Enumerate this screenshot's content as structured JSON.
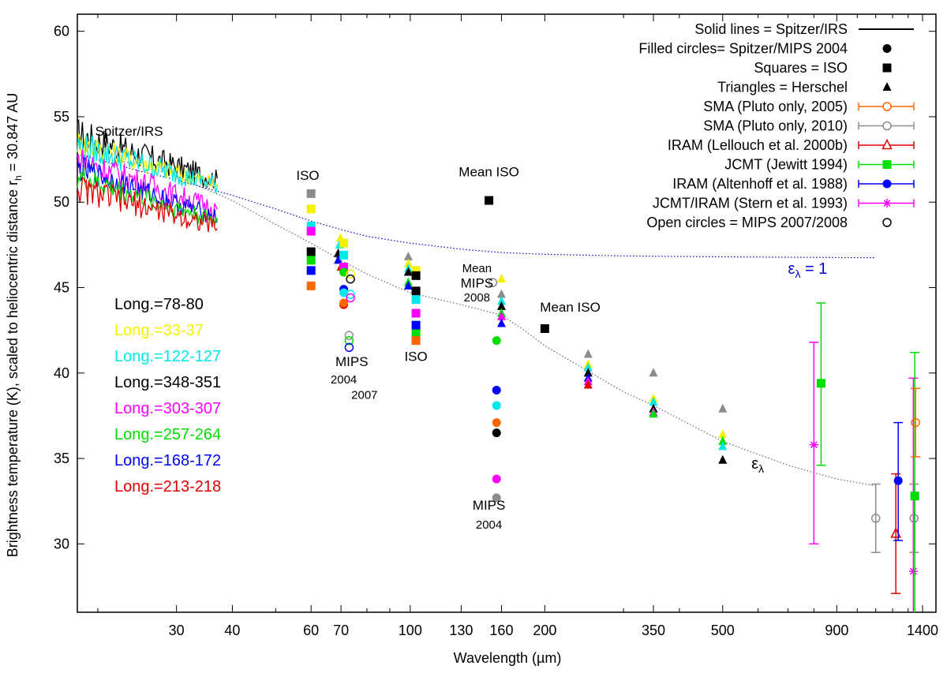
{
  "chart_data": {
    "type": "scatter",
    "xlabel": "Wavelength (µm)",
    "ylabel_main": "Brightness temperature (K), scaled to heliocentric distance r",
    "ylabel_sub": "h",
    "ylabel_tail": " = 30.847 AU",
    "x_scale": "log",
    "xlim": [
      18,
      1500
    ],
    "ylim": [
      26,
      61
    ],
    "xticks": [
      30,
      40,
      60,
      70,
      100,
      130,
      160,
      200,
      350,
      500,
      900,
      1400
    ],
    "yticks": [
      30,
      35,
      40,
      45,
      50,
      55,
      60
    ],
    "legend": [
      {
        "label": "Solid lines = Spitzer/IRS",
        "symbol": "line",
        "color": "#000000"
      },
      {
        "label": "Filled circles= Spitzer/MIPS 2004",
        "symbol": "filled-circle",
        "color": "#000000"
      },
      {
        "label": "Squares = ISO",
        "symbol": "square",
        "color": "#000000"
      },
      {
        "label": "Triangles = Herschel",
        "symbol": "triangle",
        "color": "#000000"
      },
      {
        "label": "SMA (Pluto only, 2005)",
        "symbol": "open-circle-err",
        "color": "#ff6600"
      },
      {
        "label": "SMA (Pluto only, 2010)",
        "symbol": "open-circle-err",
        "color": "#8c8c8c"
      },
      {
        "label": "IRAM (Lellouch et al. 2000b)",
        "symbol": "open-triangle-err",
        "color": "#e00000"
      },
      {
        "label": "JCMT (Jewitt 1994)",
        "symbol": "square-err",
        "color": "#00e000"
      },
      {
        "label": "IRAM (Altenhoff et al. 1988)",
        "symbol": "circle-err",
        "color": "#0000ff"
      },
      {
        "label": "JCMT/IRAM (Stern et al. 1993)",
        "symbol": "star-err",
        "color": "#ff00ff"
      },
      {
        "label": "Open circles = MIPS 2007/2008",
        "symbol": "open-circle",
        "color": "#000000"
      }
    ],
    "longitude_groups": [
      {
        "label": "Long.=78-80",
        "color": "#000000"
      },
      {
        "label": "Long.=33-37",
        "color": "#f2f200"
      },
      {
        "label": "Long.=122-127",
        "color": "#00e8e8"
      },
      {
        "label": "Long.=348-351",
        "color": "#000000"
      },
      {
        "label": "Long.=303-307",
        "color": "#ff00ff"
      },
      {
        "label": "Long.=257-264",
        "color": "#00dd00"
      },
      {
        "label": "Long.=168-172",
        "color": "#0000ff"
      },
      {
        "label": "Long.=213-218",
        "color": "#e00000"
      }
    ],
    "annotations": [
      {
        "text": "Spitzer/IRS",
        "x": 23.5,
        "y": 53.9
      },
      {
        "text": "ISO",
        "x": 59,
        "y": 51.3
      },
      {
        "text": "MIPS",
        "x": 74,
        "y": 40.4
      },
      {
        "text": "2004",
        "x": 71,
        "y": 39.4
      },
      {
        "text": "2007",
        "x": 79,
        "y": 38.5
      },
      {
        "text": "ISO",
        "x": 103,
        "y": 40.7
      },
      {
        "text": "Mean ISO",
        "x": 150,
        "y": 51.5
      },
      {
        "text": "Mean",
        "x": 141,
        "y": 45.9
      },
      {
        "text": "MIPS",
        "x": 141,
        "y": 45.0
      },
      {
        "text": "2008",
        "x": 141,
        "y": 44.2
      },
      {
        "text": "Mean ISO",
        "x": 228,
        "y": 43.6
      },
      {
        "text": "MIPS",
        "x": 150,
        "y": 32.0
      },
      {
        "text": "2004",
        "x": 150,
        "y": 30.9
      }
    ],
    "curves": [
      {
        "name": "ελ = 1",
        "style": "dotted",
        "color": "#0000cc",
        "points": [
          [
            18,
            52.8
          ],
          [
            25,
            51.8
          ],
          [
            30,
            51.3
          ],
          [
            40,
            50.4
          ],
          [
            50,
            49.6
          ],
          [
            60,
            48.9
          ],
          [
            70,
            48.4
          ],
          [
            80,
            48.0
          ],
          [
            100,
            47.6
          ],
          [
            130,
            47.25
          ],
          [
            160,
            47.05
          ],
          [
            200,
            46.95
          ],
          [
            300,
            46.85
          ],
          [
            500,
            46.8
          ],
          [
            1000,
            46.75
          ],
          [
            1100,
            46.75
          ]
        ]
      },
      {
        "name": "ελ",
        "style": "dotted",
        "color": "#666666",
        "points": [
          [
            18,
            52.8
          ],
          [
            25,
            52.2
          ],
          [
            30,
            51.5
          ],
          [
            40,
            50.1
          ],
          [
            50,
            48.7
          ],
          [
            60,
            47.6
          ],
          [
            70,
            46.6
          ],
          [
            80,
            45.8
          ],
          [
            100,
            44.7
          ],
          [
            130,
            44.0
          ],
          [
            160,
            43.4
          ],
          [
            180,
            42.5
          ],
          [
            200,
            41.6
          ],
          [
            250,
            40.1
          ],
          [
            300,
            38.9
          ],
          [
            350,
            38.1
          ],
          [
            500,
            36.0
          ],
          [
            700,
            34.6
          ],
          [
            900,
            33.8
          ],
          [
            1100,
            33.4
          ]
        ]
      }
    ],
    "curve_labels": [
      {
        "text": "ε",
        "sub": "λ",
        "suffix": " = 1",
        "x": 700,
        "y": 45.8,
        "color": "#0000cc"
      },
      {
        "text": "ε",
        "sub": "λ",
        "suffix": "",
        "x": 580,
        "y": 34.4,
        "color": "#000000"
      }
    ],
    "irs_series": [
      {
        "name": "Long.=78-80",
        "color": "#000000",
        "start": 54.0,
        "end": 51.3,
        "amp": 0.9
      },
      {
        "name": "Long.=33-37",
        "color": "#f2f200",
        "start": 53.5,
        "end": 51.0,
        "amp": 0.7
      },
      {
        "name": "Long.=122-127",
        "color": "#00e8e8",
        "start": 53.3,
        "end": 51.0,
        "amp": 0.8
      },
      {
        "name": "Long.=303-307",
        "color": "#ff00ff",
        "start": 52.5,
        "end": 49.6,
        "amp": 0.8
      },
      {
        "name": "Long.=168-172",
        "color": "#0000ff",
        "start": 52.0,
        "end": 49.1,
        "amp": 0.7
      },
      {
        "name": "Long.=257-264",
        "color": "#00dd00",
        "start": 51.5,
        "end": 48.9,
        "amp": 0.7
      },
      {
        "name": "Long.=213-218",
        "color": "#e00000",
        "start": 50.8,
        "end": 48.6,
        "amp": 0.8
      }
    ],
    "points": [
      {
        "x": 60,
        "y": 50.5,
        "m": "square",
        "c": "#8c8c8c"
      },
      {
        "x": 60,
        "y": 49.6,
        "m": "square",
        "c": "#f2f200"
      },
      {
        "x": 60,
        "y": 48.6,
        "m": "square",
        "c": "#00e8e8"
      },
      {
        "x": 60,
        "y": 48.3,
        "m": "square",
        "c": "#ff00ff"
      },
      {
        "x": 60,
        "y": 47.1,
        "m": "square",
        "c": "#000000"
      },
      {
        "x": 60,
        "y": 46.6,
        "m": "square",
        "c": "#00dd00"
      },
      {
        "x": 60,
        "y": 46.0,
        "m": "square",
        "c": "#0000ff"
      },
      {
        "x": 60,
        "y": 45.1,
        "m": "square",
        "c": "#ff6600"
      },
      {
        "x": 69.8,
        "y": 47.9,
        "m": "triangle",
        "c": "#f2f200"
      },
      {
        "x": 69.5,
        "y": 47.5,
        "m": "triangle",
        "c": "#00e8e8"
      },
      {
        "x": 69,
        "y": 47.0,
        "m": "triangle",
        "c": "#000000"
      },
      {
        "x": 69,
        "y": 46.6,
        "m": "triangle",
        "c": "#0000ff"
      },
      {
        "x": 70,
        "y": 46.2,
        "m": "triangle",
        "c": "#e00000"
      },
      {
        "x": 71,
        "y": 47.6,
        "m": "square",
        "c": "#f2f200"
      },
      {
        "x": 71,
        "y": 46.9,
        "m": "square",
        "c": "#00e8e8"
      },
      {
        "x": 71,
        "y": 46.2,
        "m": "square",
        "c": "#ff00ff"
      },
      {
        "x": 71,
        "y": 45.9,
        "m": "circle",
        "c": "#00dd00"
      },
      {
        "x": 71,
        "y": 44.9,
        "m": "circle",
        "c": "#0000ff"
      },
      {
        "x": 71,
        "y": 44.7,
        "m": "circle",
        "c": "#00e8e8"
      },
      {
        "x": 71,
        "y": 44.0,
        "m": "circle",
        "c": "#e00000"
      },
      {
        "x": 71,
        "y": 44.1,
        "m": "circle",
        "c": "#ff6600"
      },
      {
        "x": 73.5,
        "y": 45.8,
        "m": "open-circle",
        "c": "#f2f200"
      },
      {
        "x": 73.5,
        "y": 45.5,
        "m": "open-circle",
        "c": "#000000"
      },
      {
        "x": 73.5,
        "y": 44.6,
        "m": "open-circle",
        "c": "#00e8e8"
      },
      {
        "x": 73.5,
        "y": 44.4,
        "m": "open-circle",
        "c": "#ff00ff"
      },
      {
        "x": 73,
        "y": 42.2,
        "m": "open-circle",
        "c": "#8c8c8c"
      },
      {
        "x": 73,
        "y": 41.9,
        "m": "open-circle",
        "c": "#00dd00"
      },
      {
        "x": 73,
        "y": 41.5,
        "m": "open-circle",
        "c": "#0000ff"
      },
      {
        "x": 99,
        "y": 46.8,
        "m": "triangle",
        "c": "#8c8c8c"
      },
      {
        "x": 99,
        "y": 46.4,
        "m": "triangle",
        "c": "#f2f200"
      },
      {
        "x": 99,
        "y": 46.1,
        "m": "triangle",
        "c": "#00e8e8"
      },
      {
        "x": 99,
        "y": 45.9,
        "m": "triangle",
        "c": "#000000"
      },
      {
        "x": 99,
        "y": 45.3,
        "m": "triangle",
        "c": "#00dd00"
      },
      {
        "x": 99,
        "y": 45.1,
        "m": "triangle",
        "c": "#0000ff"
      },
      {
        "x": 103,
        "y": 46.0,
        "m": "square",
        "c": "#f2f200"
      },
      {
        "x": 103,
        "y": 45.7,
        "m": "square",
        "c": "#000000"
      },
      {
        "x": 103,
        "y": 44.8,
        "m": "square",
        "c": "#000000"
      },
      {
        "x": 103,
        "y": 44.3,
        "m": "square",
        "c": "#00e8e8"
      },
      {
        "x": 103,
        "y": 43.5,
        "m": "square",
        "c": "#ff00ff"
      },
      {
        "x": 103,
        "y": 42.8,
        "m": "square",
        "c": "#0000ff"
      },
      {
        "x": 103,
        "y": 42.3,
        "m": "square",
        "c": "#00dd00"
      },
      {
        "x": 103,
        "y": 41.9,
        "m": "square",
        "c": "#ff6600"
      },
      {
        "x": 150,
        "y": 50.1,
        "m": "square",
        "c": "#000000"
      },
      {
        "x": 153,
        "y": 45.3,
        "m": "open-circle",
        "c": "#8c8c8c"
      },
      {
        "x": 160,
        "y": 45.5,
        "m": "triangle",
        "c": "#f2f200"
      },
      {
        "x": 160,
        "y": 44.6,
        "m": "triangle",
        "c": "#8c8c8c"
      },
      {
        "x": 160,
        "y": 44.2,
        "m": "triangle",
        "c": "#00e8e8"
      },
      {
        "x": 160,
        "y": 43.9,
        "m": "triangle",
        "c": "#000000"
      },
      {
        "x": 160,
        "y": 43.5,
        "m": "triangle",
        "c": "#00dd00"
      },
      {
        "x": 160,
        "y": 43.3,
        "m": "triangle",
        "c": "#ff00ff"
      },
      {
        "x": 160,
        "y": 42.9,
        "m": "triangle",
        "c": "#0000ff"
      },
      {
        "x": 156,
        "y": 41.9,
        "m": "circle",
        "c": "#00dd00"
      },
      {
        "x": 156,
        "y": 39.0,
        "m": "circle",
        "c": "#0000ff"
      },
      {
        "x": 156,
        "y": 38.1,
        "m": "circle",
        "c": "#00e8e8"
      },
      {
        "x": 156,
        "y": 37.1,
        "m": "circle",
        "c": "#ff6600"
      },
      {
        "x": 156,
        "y": 36.5,
        "m": "circle",
        "c": "#000000"
      },
      {
        "x": 156,
        "y": 33.8,
        "m": "circle",
        "c": "#ff00ff"
      },
      {
        "x": 156,
        "y": 32.7,
        "m": "circle",
        "c": "#8c8c8c"
      },
      {
        "x": 200,
        "y": 42.6,
        "m": "square",
        "c": "#000000"
      },
      {
        "x": 250,
        "y": 41.1,
        "m": "triangle",
        "c": "#8c8c8c"
      },
      {
        "x": 250,
        "y": 40.5,
        "m": "triangle",
        "c": "#f2f200"
      },
      {
        "x": 250,
        "y": 40.3,
        "m": "triangle",
        "c": "#00e8e8"
      },
      {
        "x": 250,
        "y": 40.0,
        "m": "triangle",
        "c": "#000000"
      },
      {
        "x": 250,
        "y": 39.7,
        "m": "triangle",
        "c": "#0000ff"
      },
      {
        "x": 250,
        "y": 39.5,
        "m": "triangle",
        "c": "#ff00ff"
      },
      {
        "x": 250,
        "y": 39.3,
        "m": "triangle",
        "c": "#e00000"
      },
      {
        "x": 350,
        "y": 40.0,
        "m": "triangle",
        "c": "#8c8c8c"
      },
      {
        "x": 350,
        "y": 38.5,
        "m": "triangle",
        "c": "#f2f200"
      },
      {
        "x": 350,
        "y": 38.3,
        "m": "triangle",
        "c": "#00e8e8"
      },
      {
        "x": 350,
        "y": 37.9,
        "m": "triangle",
        "c": "#000000"
      },
      {
        "x": 350,
        "y": 37.7,
        "m": "triangle",
        "c": "#ff00ff"
      },
      {
        "x": 350,
        "y": 37.6,
        "m": "triangle",
        "c": "#00dd00"
      },
      {
        "x": 500,
        "y": 37.9,
        "m": "triangle",
        "c": "#8c8c8c"
      },
      {
        "x": 500,
        "y": 36.4,
        "m": "triangle",
        "c": "#f2f200"
      },
      {
        "x": 500,
        "y": 36.0,
        "m": "triangle",
        "c": "#00dd00"
      },
      {
        "x": 500,
        "y": 35.7,
        "m": "triangle",
        "c": "#00e8e8"
      },
      {
        "x": 500,
        "y": 34.9,
        "m": "triangle",
        "c": "#000000"
      }
    ],
    "error_points": [
      {
        "x": 800,
        "y": 35.8,
        "lo": 30.0,
        "hi": 41.8,
        "m": "star",
        "c": "#ff00ff"
      },
      {
        "x": 830,
        "y": 39.4,
        "lo": 34.6,
        "hi": 44.1,
        "m": "square",
        "c": "#00dd00"
      },
      {
        "x": 1100,
        "y": 31.5,
        "lo": 29.5,
        "hi": 33.5,
        "m": "open-circle",
        "c": "#8c8c8c"
      },
      {
        "x": 1220,
        "y": 30.6,
        "lo": 27.1,
        "hi": 34.1,
        "m": "open-triangle",
        "c": "#e00000"
      },
      {
        "x": 1235,
        "y": 33.7,
        "lo": 30.2,
        "hi": 37.1,
        "m": "circle",
        "c": "#0000ff"
      },
      {
        "x": 1335,
        "y": 28.4,
        "lo": 26,
        "hi": 39.7,
        "m": "star",
        "c": "#ff00ff"
      },
      {
        "x": 1340,
        "y": 31.5,
        "lo": 29.5,
        "hi": 33.5,
        "m": "open-circle",
        "c": "#8c8c8c"
      },
      {
        "x": 1345,
        "y": 32.8,
        "lo": 26,
        "hi": 41.2,
        "m": "square",
        "c": "#00dd00"
      },
      {
        "x": 1350,
        "y": 37.1,
        "lo": 35.1,
        "hi": 39.1,
        "m": "open-circle",
        "c": "#ff6600"
      }
    ]
  }
}
